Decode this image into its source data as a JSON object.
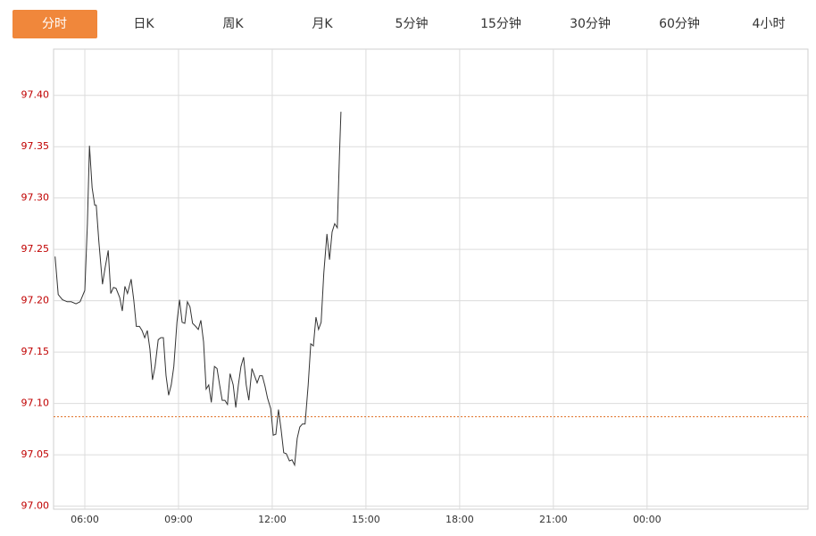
{
  "tabs": [
    "分时",
    "日K",
    "周K",
    "月K",
    "5分钟",
    "15分钟",
    "30分钟",
    "60分钟",
    "4小时"
  ],
  "active_tab": 0,
  "chart_data": {
    "type": "line",
    "x": [
      303,
      309,
      317,
      326,
      334,
      343,
      351,
      360,
      365,
      369,
      374,
      379,
      382,
      387,
      394,
      399,
      405,
      410,
      415,
      420,
      427,
      432,
      437,
      442,
      449,
      454,
      459,
      465,
      470,
      475,
      480,
      485,
      490,
      495,
      501,
      506,
      511,
      516,
      521,
      526,
      531,
      537,
      542,
      547,
      552,
      557,
      562,
      567,
      573,
      578,
      583,
      588,
      593,
      598,
      603,
      609,
      614,
      619,
      624,
      629,
      634,
      639,
      645,
      650,
      655,
      660,
      665,
      670,
      675,
      681,
      686,
      691,
      696,
      701,
      706,
      711,
      717,
      722,
      727,
      732,
      737,
      742,
      747,
      753,
      758,
      763,
      768,
      773,
      778,
      783,
      789,
      794,
      799,
      804,
      809,
      814,
      819,
      825,
      830,
      835,
      840,
      845,
      849,
      852
    ],
    "values": [
      97.243,
      97.206,
      97.201,
      97.199,
      97.199,
      97.197,
      97.199,
      97.21,
      97.275,
      97.351,
      97.31,
      97.293,
      97.293,
      97.258,
      97.216,
      97.232,
      97.249,
      97.207,
      97.213,
      97.212,
      97.203,
      97.19,
      97.214,
      97.207,
      97.221,
      97.201,
      97.175,
      97.175,
      97.171,
      97.164,
      97.171,
      97.153,
      97.123,
      97.136,
      97.162,
      97.164,
      97.164,
      97.127,
      97.108,
      97.118,
      97.136,
      97.179,
      97.201,
      97.179,
      97.178,
      97.199,
      97.194,
      97.178,
      97.175,
      97.172,
      97.181,
      97.16,
      97.114,
      97.118,
      97.101,
      97.136,
      97.134,
      97.118,
      97.103,
      97.103,
      97.099,
      97.129,
      97.118,
      97.096,
      97.118,
      97.136,
      97.145,
      97.118,
      97.103,
      97.134,
      97.127,
      97.12,
      97.127,
      97.127,
      97.117,
      97.105,
      97.095,
      97.069,
      97.07,
      97.094,
      97.075,
      97.052,
      97.051,
      97.044,
      97.045,
      97.04,
      97.066,
      97.077,
      97.08,
      97.08,
      97.118,
      97.158,
      97.156,
      97.184,
      97.172,
      97.179,
      97.227,
      97.265,
      97.24,
      97.267,
      97.275,
      97.271,
      97.341,
      97.384
    ],
    "color": "#333333",
    "xlim": [
      300,
      1749
    ],
    "xticks": [
      {
        "value": 360,
        "label": "06:00"
      },
      {
        "value": 540,
        "label": "09:00"
      },
      {
        "value": 720,
        "label": "12:00"
      },
      {
        "value": 900,
        "label": "15:00"
      },
      {
        "value": 1080,
        "label": "18:00"
      },
      {
        "value": 1260,
        "label": "21:00"
      },
      {
        "value": 1440,
        "label": "00:00"
      }
    ],
    "ylim": [
      96.997,
      97.445
    ],
    "yticks": [
      {
        "value": 97,
        "label": "97.00"
      },
      97.05,
      {
        "value": 97.1,
        "label": "97.10"
      },
      97.15,
      {
        "value": 97.2,
        "label": "97.20"
      },
      97.25,
      {
        "value": 97.3,
        "label": "97.30"
      },
      97.35,
      {
        "value": 97.4,
        "label": "97.40"
      }
    ],
    "reference_line": 97.087,
    "reference_color": "#e0742b",
    "grid": true
  }
}
